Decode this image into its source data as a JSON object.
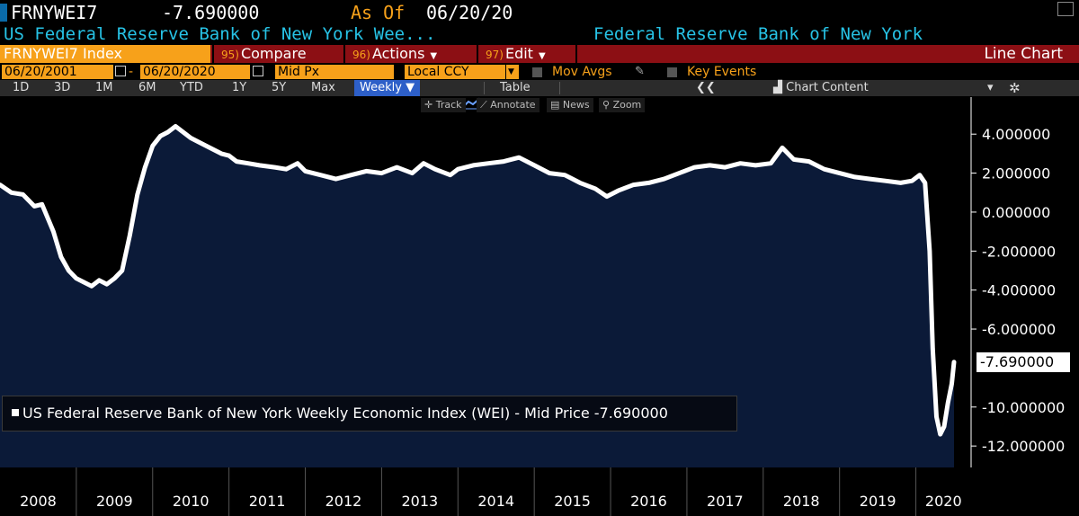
{
  "header": {
    "ticker": "FRNYWEI7",
    "value": "-7.690000",
    "as_of_label": "As Of",
    "as_of_date": "06/20/20",
    "name_short": "US Federal Reserve Bank of New York Wee...",
    "source": "Federal Reserve Bank of New York"
  },
  "menu": {
    "ticker_field": "FRNYWEI7 Index",
    "compare_num": "95)",
    "compare": "Compare",
    "actions_num": "96)",
    "actions": "Actions",
    "edit_num": "97)",
    "edit": "Edit",
    "chart_type": "Line Chart"
  },
  "settings": {
    "start_date": "06/20/2001",
    "end_date": "06/20/2020",
    "price": "Mid Px",
    "currency": "Local CCY",
    "mov_avgs": "Mov Avgs",
    "key_events": "Key Events"
  },
  "toolbar": {
    "ranges": [
      "1D",
      "3D",
      "1M",
      "6M",
      "YTD",
      "1Y",
      "5Y",
      "Max"
    ],
    "frequency": "Weekly",
    "table": "Table",
    "chart_content": "Chart Content"
  },
  "chart_tools": {
    "track": "Track",
    "annotate": "Annotate",
    "news": "News",
    "zoom": "Zoom"
  },
  "legend": {
    "text": "US Federal Reserve Bank of New York Weekly Economic Index (WEI) - Mid Price -7.690000"
  },
  "colors": {
    "background": "#000000",
    "plot_fill": "#0b1a38",
    "line": "#ffffff",
    "accent_orange": "#f7a11a",
    "menu_red": "#8c0f14",
    "cyan": "#27c3e6"
  },
  "chart_data": {
    "type": "area",
    "title": "FRNYWEI7 Index",
    "series": [
      {
        "name": "US Federal Reserve Bank of New York Weekly Economic Index (WEI) - Mid Price",
        "last_value": "-7.690000",
        "points": [
          [
            2008.0,
            1.4
          ],
          [
            2008.15,
            1.0
          ],
          [
            2008.3,
            0.9
          ],
          [
            2008.45,
            0.3
          ],
          [
            2008.55,
            0.4
          ],
          [
            2008.7,
            -1.0
          ],
          [
            2008.8,
            -2.3
          ],
          [
            2008.9,
            -3.0
          ],
          [
            2009.0,
            -3.4
          ],
          [
            2009.1,
            -3.6
          ],
          [
            2009.2,
            -3.8
          ],
          [
            2009.3,
            -3.5
          ],
          [
            2009.4,
            -3.7
          ],
          [
            2009.5,
            -3.4
          ],
          [
            2009.6,
            -3.0
          ],
          [
            2009.7,
            -1.2
          ],
          [
            2009.8,
            0.9
          ],
          [
            2009.9,
            2.3
          ],
          [
            2010.0,
            3.4
          ],
          [
            2010.1,
            3.9
          ],
          [
            2010.2,
            4.1
          ],
          [
            2010.3,
            4.4
          ],
          [
            2010.4,
            4.1
          ],
          [
            2010.5,
            3.8
          ],
          [
            2010.6,
            3.6
          ],
          [
            2010.75,
            3.3
          ],
          [
            2010.9,
            3.0
          ],
          [
            2011.0,
            2.9
          ],
          [
            2011.1,
            2.6
          ],
          [
            2011.25,
            2.5
          ],
          [
            2011.4,
            2.4
          ],
          [
            2011.6,
            2.3
          ],
          [
            2011.75,
            2.2
          ],
          [
            2011.9,
            2.5
          ],
          [
            2012.0,
            2.1
          ],
          [
            2012.2,
            1.9
          ],
          [
            2012.4,
            1.7
          ],
          [
            2012.6,
            1.9
          ],
          [
            2012.8,
            2.1
          ],
          [
            2013.0,
            2.0
          ],
          [
            2013.2,
            2.3
          ],
          [
            2013.4,
            2.0
          ],
          [
            2013.55,
            2.5
          ],
          [
            2013.7,
            2.2
          ],
          [
            2013.9,
            1.9
          ],
          [
            2014.0,
            2.2
          ],
          [
            2014.2,
            2.4
          ],
          [
            2014.4,
            2.5
          ],
          [
            2014.6,
            2.6
          ],
          [
            2014.8,
            2.8
          ],
          [
            2015.0,
            2.4
          ],
          [
            2015.2,
            2.0
          ],
          [
            2015.4,
            1.9
          ],
          [
            2015.6,
            1.5
          ],
          [
            2015.8,
            1.2
          ],
          [
            2015.95,
            0.8
          ],
          [
            2016.1,
            1.1
          ],
          [
            2016.3,
            1.4
          ],
          [
            2016.5,
            1.5
          ],
          [
            2016.7,
            1.7
          ],
          [
            2016.9,
            2.0
          ],
          [
            2017.1,
            2.3
          ],
          [
            2017.3,
            2.4
          ],
          [
            2017.5,
            2.3
          ],
          [
            2017.7,
            2.5
          ],
          [
            2017.9,
            2.4
          ],
          [
            2018.1,
            2.5
          ],
          [
            2018.25,
            3.3
          ],
          [
            2018.4,
            2.7
          ],
          [
            2018.6,
            2.6
          ],
          [
            2018.8,
            2.2
          ],
          [
            2019.0,
            2.0
          ],
          [
            2019.2,
            1.8
          ],
          [
            2019.4,
            1.7
          ],
          [
            2019.6,
            1.6
          ],
          [
            2019.8,
            1.5
          ],
          [
            2019.95,
            1.6
          ],
          [
            2020.05,
            1.9
          ],
          [
            2020.12,
            1.5
          ],
          [
            2020.18,
            -2.0
          ],
          [
            2020.22,
            -7.0
          ],
          [
            2020.27,
            -10.5
          ],
          [
            2020.32,
            -11.4
          ],
          [
            2020.37,
            -11.0
          ],
          [
            2020.42,
            -9.8
          ],
          [
            2020.47,
            -8.8
          ],
          [
            2020.5,
            -7.69
          ]
        ]
      }
    ],
    "x_ticks": [
      "2008",
      "2009",
      "2010",
      "2011",
      "2012",
      "2013",
      "2014",
      "2015",
      "2016",
      "2017",
      "2018",
      "2019",
      "2020"
    ],
    "x_range": [
      2008.0,
      2020.7
    ],
    "y_ticks": [
      4,
      2,
      0,
      -2,
      -4,
      -6,
      -10,
      -12
    ],
    "y_tick_labels": [
      "4.000000",
      "2.000000",
      "0.000000",
      "-2.000000",
      "-4.000000",
      "-6.000000",
      "-10.000000",
      "-12.000000"
    ],
    "ylim": [
      -13.1,
      5.9
    ],
    "legend_position": "bottom-left"
  }
}
